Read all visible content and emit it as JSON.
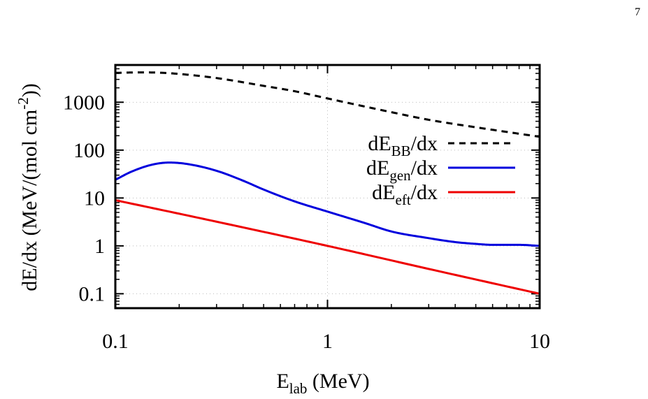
{
  "page_number": "7",
  "chart_data": {
    "type": "line",
    "title": "",
    "xlabel": {
      "base": "E",
      "sub": "lab",
      "rest": " (MeV)"
    },
    "ylabel": {
      "pre": "dE/dx (MeV/(mol cm",
      "sup": "-2",
      "post": "))"
    },
    "x_scale": "log",
    "y_scale": "log",
    "xlim": [
      0.1,
      10
    ],
    "ylim": [
      0.05,
      6000
    ],
    "x_ticks": [
      0.1,
      1,
      10
    ],
    "x_tick_labels": [
      "0.1",
      "1",
      "10"
    ],
    "y_ticks": [
      0.1,
      1,
      10,
      100,
      1000
    ],
    "y_tick_labels": [
      "0.1",
      "1",
      "10",
      "100",
      "1000"
    ],
    "grid": true,
    "legend_position": "right",
    "series": [
      {
        "key": "bb",
        "legend": {
          "base": "dE",
          "sub": "BB",
          "rest": "/dx"
        },
        "color": "#000000",
        "dash": true,
        "x": [
          0.1,
          0.13,
          0.16,
          0.2,
          0.3,
          0.5,
          0.7,
          1,
          2,
          3,
          5,
          7,
          10
        ],
        "y": [
          4100,
          4200,
          4150,
          3900,
          3200,
          2200,
          1700,
          1200,
          620,
          430,
          300,
          240,
          190
        ]
      },
      {
        "key": "gen",
        "legend": {
          "base": "dE",
          "sub": "gen",
          "rest": "/dx"
        },
        "color": "#0000dd",
        "dash": false,
        "x": [
          0.1,
          0.12,
          0.15,
          0.18,
          0.22,
          0.3,
          0.4,
          0.5,
          0.7,
          1,
          1.5,
          2,
          3,
          4,
          5,
          6,
          8,
          10
        ],
        "y": [
          24,
          36,
          50,
          55,
          51,
          37,
          23,
          15,
          8.5,
          5.2,
          3.0,
          2.0,
          1.45,
          1.2,
          1.1,
          1.05,
          1.05,
          1.0
        ]
      },
      {
        "key": "eft",
        "legend": {
          "base": "dE",
          "sub": "eft",
          "rest": "/dx"
        },
        "color": "#ee0000",
        "dash": false,
        "x": [
          0.1,
          0.3,
          1,
          3,
          10
        ],
        "y": [
          9.0,
          3.2,
          1.0,
          0.33,
          0.1
        ]
      }
    ]
  }
}
